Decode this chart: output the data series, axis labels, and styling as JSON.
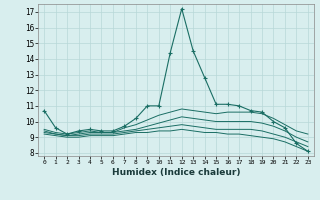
{
  "xlabel": "Humidex (Indice chaleur)",
  "background_color": "#d8eeee",
  "grid_color": "#b8d8d8",
  "line_color": "#1a6e64",
  "xlim": [
    -0.5,
    23.5
  ],
  "ylim": [
    7.8,
    17.5
  ],
  "yticks": [
    8,
    9,
    10,
    11,
    12,
    13,
    14,
    15,
    16,
    17
  ],
  "xticks": [
    0,
    1,
    2,
    3,
    4,
    5,
    6,
    7,
    8,
    9,
    10,
    11,
    12,
    13,
    14,
    15,
    16,
    17,
    18,
    19,
    20,
    21,
    22,
    23
  ],
  "lines": [
    {
      "x": [
        0,
        1,
        2,
        3,
        4,
        5,
        6,
        7,
        8,
        9,
        10,
        11,
        12,
        13,
        14,
        15,
        16,
        17,
        18,
        19,
        20,
        21,
        22,
        23
      ],
      "y": [
        10.7,
        9.6,
        9.2,
        9.4,
        9.5,
        9.4,
        9.4,
        9.7,
        10.2,
        11.0,
        11.0,
        14.4,
        17.2,
        14.5,
        12.8,
        11.1,
        11.1,
        11.0,
        10.7,
        10.6,
        10.0,
        9.6,
        8.6,
        8.1
      ],
      "marker": true
    },
    {
      "x": [
        0,
        1,
        2,
        3,
        4,
        5,
        6,
        7,
        8,
        9,
        10,
        11,
        12,
        13,
        14,
        15,
        16,
        17,
        18,
        19,
        20,
        21,
        22,
        23
      ],
      "y": [
        9.5,
        9.3,
        9.2,
        9.3,
        9.4,
        9.3,
        9.3,
        9.6,
        9.8,
        10.1,
        10.4,
        10.6,
        10.8,
        10.7,
        10.6,
        10.5,
        10.6,
        10.6,
        10.6,
        10.5,
        10.2,
        9.8,
        9.4,
        9.2
      ],
      "marker": false
    },
    {
      "x": [
        0,
        1,
        2,
        3,
        4,
        5,
        6,
        7,
        8,
        9,
        10,
        11,
        12,
        13,
        14,
        15,
        16,
        17,
        18,
        19,
        20,
        21,
        22,
        23
      ],
      "y": [
        9.4,
        9.2,
        9.1,
        9.2,
        9.3,
        9.3,
        9.3,
        9.4,
        9.5,
        9.7,
        9.9,
        10.1,
        10.3,
        10.2,
        10.1,
        10.0,
        10.0,
        10.0,
        10.0,
        9.9,
        9.7,
        9.4,
        9.0,
        8.7
      ],
      "marker": false
    },
    {
      "x": [
        0,
        1,
        2,
        3,
        4,
        5,
        6,
        7,
        8,
        9,
        10,
        11,
        12,
        13,
        14,
        15,
        16,
        17,
        18,
        19,
        20,
        21,
        22,
        23
      ],
      "y": [
        9.3,
        9.2,
        9.1,
        9.1,
        9.2,
        9.2,
        9.2,
        9.3,
        9.4,
        9.5,
        9.6,
        9.7,
        9.8,
        9.7,
        9.6,
        9.5,
        9.5,
        9.5,
        9.5,
        9.4,
        9.2,
        9.0,
        8.7,
        8.4
      ],
      "marker": false
    },
    {
      "x": [
        0,
        1,
        2,
        3,
        4,
        5,
        6,
        7,
        8,
        9,
        10,
        11,
        12,
        13,
        14,
        15,
        16,
        17,
        18,
        19,
        20,
        21,
        22,
        23
      ],
      "y": [
        9.2,
        9.1,
        9.0,
        9.0,
        9.1,
        9.1,
        9.1,
        9.2,
        9.3,
        9.3,
        9.4,
        9.4,
        9.5,
        9.4,
        9.3,
        9.3,
        9.2,
        9.2,
        9.1,
        9.0,
        8.9,
        8.7,
        8.4,
        8.1
      ],
      "marker": false
    }
  ]
}
